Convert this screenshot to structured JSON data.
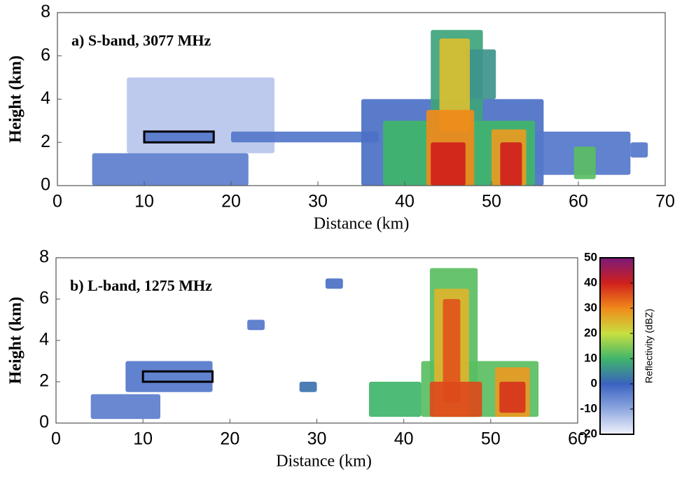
{
  "chart_data": [
    {
      "type": "heatmap",
      "label": "a) S-band, 3077 MHz",
      "xlabel": "Distance (km)",
      "ylabel": "Height (km)",
      "xlim": [
        0,
        70
      ],
      "ylim": [
        0,
        8
      ],
      "xticks": [
        0,
        10,
        20,
        30,
        40,
        50,
        60,
        70
      ],
      "yticks": [
        0,
        2,
        4,
        6,
        8
      ],
      "box": {
        "x": [
          10,
          18
        ],
        "y": [
          2,
          2.5
        ]
      },
      "cells": [
        {
          "x": [
            8,
            25
          ],
          "y": [
            1.5,
            5
          ],
          "value": -14
        },
        {
          "x": [
            4,
            22
          ],
          "y": [
            0,
            1.5
          ],
          "value": -4
        },
        {
          "x": [
            20,
            37
          ],
          "y": [
            2,
            2.5
          ],
          "value": -3
        },
        {
          "x": [
            10,
            18
          ],
          "y": [
            2,
            2.5
          ],
          "value": -3
        },
        {
          "x": [
            35,
            56
          ],
          "y": [
            0,
            4
          ],
          "value": -2
        },
        {
          "x": [
            43,
            49
          ],
          "y": [
            3,
            7.2
          ],
          "value": 8
        },
        {
          "x": [
            47,
            50.5
          ],
          "y": [
            4,
            6.3
          ],
          "value": 6
        },
        {
          "x": [
            37.5,
            55
          ],
          "y": [
            0,
            3
          ],
          "value": 10
        },
        {
          "x": [
            44,
            47.5
          ],
          "y": [
            2.5,
            6.8
          ],
          "value": 24
        },
        {
          "x": [
            42.5,
            48
          ],
          "y": [
            0,
            3.5
          ],
          "value": 30
        },
        {
          "x": [
            43,
            47
          ],
          "y": [
            0,
            2
          ],
          "value": 40
        },
        {
          "x": [
            50,
            54
          ],
          "y": [
            0,
            2.6
          ],
          "value": 28
        },
        {
          "x": [
            51,
            53.5
          ],
          "y": [
            0,
            2
          ],
          "value": 40
        },
        {
          "x": [
            55,
            66
          ],
          "y": [
            0.5,
            2.5
          ],
          "value": -3
        },
        {
          "x": [
            59.5,
            62
          ],
          "y": [
            0.3,
            1.8
          ],
          "value": 12
        },
        {
          "x": [
            66,
            68
          ],
          "y": [
            1.3,
            2
          ],
          "value": -3
        }
      ]
    },
    {
      "type": "heatmap",
      "label": "b) L-band, 1275 MHz",
      "xlabel": "Distance (km)",
      "ylabel": "Height (km)",
      "xlim": [
        0,
        60
      ],
      "ylim": [
        0,
        8
      ],
      "xticks": [
        0,
        10,
        20,
        30,
        40,
        50,
        60
      ],
      "yticks": [
        0,
        2,
        4,
        6,
        8
      ],
      "box": {
        "x": [
          10,
          18
        ],
        "y": [
          2,
          2.5
        ]
      },
      "cells": [
        {
          "x": [
            8,
            18
          ],
          "y": [
            1.5,
            3
          ],
          "value": -3
        },
        {
          "x": [
            4,
            12
          ],
          "y": [
            0.2,
            1.4
          ],
          "value": -4
        },
        {
          "x": [
            22,
            24
          ],
          "y": [
            4.5,
            5
          ],
          "value": -3
        },
        {
          "x": [
            28,
            30
          ],
          "y": [
            1.5,
            2
          ],
          "value": 2
        },
        {
          "x": [
            31,
            33
          ],
          "y": [
            6.5,
            7
          ],
          "value": -2
        },
        {
          "x": [
            36,
            42
          ],
          "y": [
            0.3,
            2
          ],
          "value": 10
        },
        {
          "x": [
            42,
            55.5
          ],
          "y": [
            0.3,
            3
          ],
          "value": 12
        },
        {
          "x": [
            43,
            48.5
          ],
          "y": [
            0.3,
            7.5
          ],
          "value": 12
        },
        {
          "x": [
            43.5,
            47.5
          ],
          "y": [
            0.3,
            6.5
          ],
          "value": 25
        },
        {
          "x": [
            44.5,
            46.5
          ],
          "y": [
            1,
            6
          ],
          "value": 35
        },
        {
          "x": [
            43,
            49
          ],
          "y": [
            0.3,
            2
          ],
          "value": 36
        },
        {
          "x": [
            50.5,
            54.5
          ],
          "y": [
            0.3,
            2.7
          ],
          "value": 28
        },
        {
          "x": [
            51,
            54
          ],
          "y": [
            0.5,
            2
          ],
          "value": 38
        }
      ]
    },
    {
      "type": "colorbar",
      "label": "Reflectivity (dBZ)",
      "ylim": [
        -20,
        50
      ],
      "yticks": [
        -20,
        -10,
        0,
        10,
        20,
        30,
        40,
        50
      ],
      "colorscale": [
        {
          "value": -20,
          "color": "#f2f2fb"
        },
        {
          "value": -10,
          "color": "#8fa8e0"
        },
        {
          "value": 0,
          "color": "#3a62c0"
        },
        {
          "value": 10,
          "color": "#3fb56a"
        },
        {
          "value": 20,
          "color": "#c8e040"
        },
        {
          "value": 30,
          "color": "#f08a1a"
        },
        {
          "value": 40,
          "color": "#d0201c"
        },
        {
          "value": 50,
          "color": "#7a1a7a"
        }
      ]
    }
  ]
}
